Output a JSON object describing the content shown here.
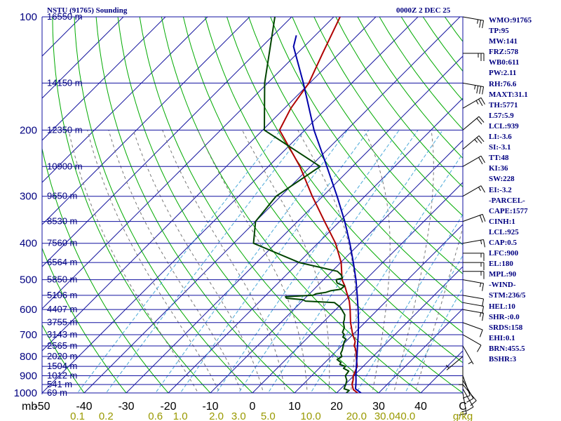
{
  "title_left": "NSTU (91765) Sounding",
  "title_right": "0000Z  2 DEC 25",
  "colors": {
    "isobar": "#1010a0",
    "isotherm": "#1818a0",
    "dry_adiabat": "#00aa00",
    "moist_adiabat": "#777777",
    "mixing_ratio": "#4aa8d8",
    "temperature": "#b00000",
    "dewpoint": "#004400",
    "parcel": "#0000aa",
    "label_text": "#000080",
    "axis_text": "#000000",
    "mr_text": "#999900"
  },
  "chart_data": {
    "type": "line",
    "title": "NSTU (91765) Sounding",
    "xlabel": "C",
    "temperature_range": [
      -50,
      50
    ],
    "pressure_range": [
      1000,
      100
    ],
    "pressure_labels": [
      "100",
      "200",
      "300",
      "400",
      "500",
      "600",
      "700",
      "800",
      "900",
      "1000"
    ],
    "pressure_values": [
      100,
      200,
      300,
      400,
      500,
      600,
      700,
      800,
      900,
      1000
    ],
    "temperature_axis_label": "mb",
    "temperature_ticks": [
      "-50",
      "-40",
      "-30",
      "-20",
      "-10",
      "0",
      "10",
      "20",
      "30",
      "40"
    ],
    "temperature_values": [
      -50,
      -40,
      -30,
      -20,
      -10,
      0,
      10,
      20,
      30,
      40
    ],
    "height_labels": [
      {
        "p": 100,
        "text": "16550 m"
      },
      {
        "p": 150,
        "text": "14150 m"
      },
      {
        "p": 200,
        "text": "12350 m"
      },
      {
        "p": 250,
        "text": "10900 m"
      },
      {
        "p": 300,
        "text": "9650 m"
      },
      {
        "p": 350,
        "text": "8530 m"
      },
      {
        "p": 400,
        "text": "7560 m"
      },
      {
        "p": 450,
        "text": "6564 m"
      },
      {
        "p": 500,
        "text": "5850 m"
      },
      {
        "p": 550,
        "text": "5106 m"
      },
      {
        "p": 600,
        "text": "4407 m"
      },
      {
        "p": 650,
        "text": "3755 m"
      },
      {
        "p": 700,
        "text": "3143 m"
      },
      {
        "p": 750,
        "text": "2565 m"
      },
      {
        "p": 800,
        "text": "2020 m"
      },
      {
        "p": 850,
        "text": "1504 m"
      },
      {
        "p": 900,
        "text": "1012 m"
      },
      {
        "p": 950,
        "text": "541 m"
      },
      {
        "p": 1000,
        "text": "69 m"
      }
    ],
    "mixing_ratio_labels": [
      "0.1",
      "0.2",
      "0.6",
      "1.0",
      "2.0",
      "3.0",
      "5.0",
      "10.0",
      "20.0",
      "30.0",
      "40.0",
      "g/kg"
    ],
    "mixing_ratio_values": [
      0.1,
      0.2,
      0.6,
      1.0,
      2.0,
      3.0,
      5.0,
      10.0,
      20.0,
      30.0,
      40.0
    ],
    "series": [
      {
        "name": "Temperature",
        "points": [
          [
            1000,
            25.0
          ],
          [
            980,
            23.2
          ],
          [
            950,
            21.7
          ],
          [
            925,
            20.9
          ],
          [
            900,
            19.9
          ],
          [
            850,
            18.6
          ],
          [
            800,
            16.0
          ],
          [
            780,
            15.0
          ],
          [
            760,
            13.8
          ],
          [
            750,
            13.0
          ],
          [
            730,
            12.2
          ],
          [
            700,
            10.0
          ],
          [
            650,
            6.6
          ],
          [
            600,
            3.4
          ],
          [
            570,
            1.2
          ],
          [
            550,
            -0.6
          ],
          [
            520,
            -3.4
          ],
          [
            500,
            -5.6
          ],
          [
            450,
            -9.9
          ],
          [
            400,
            -15.8
          ],
          [
            350,
            -23.6
          ],
          [
            300,
            -32.5
          ],
          [
            250,
            -42.5
          ],
          [
            200,
            -56.0
          ],
          [
            175,
            -58.5
          ],
          [
            150,
            -60.2
          ],
          [
            125,
            -64.0
          ],
          [
            100,
            -68.5
          ]
        ]
      },
      {
        "name": "Dewpoint",
        "points": [
          [
            1000,
            22.3
          ],
          [
            985,
            22.4
          ],
          [
            975,
            20.8
          ],
          [
            960,
            20.4
          ],
          [
            950,
            20.2
          ],
          [
            925,
            19.4
          ],
          [
            900,
            18.0
          ],
          [
            875,
            17.7
          ],
          [
            860,
            15.8
          ],
          [
            850,
            15.8
          ],
          [
            840,
            14.0
          ],
          [
            830,
            13.8
          ],
          [
            815,
            12.2
          ],
          [
            800,
            12.6
          ],
          [
            785,
            11.6
          ],
          [
            770,
            11.2
          ],
          [
            750,
            10.4
          ],
          [
            730,
            9.6
          ],
          [
            720,
            9.5
          ],
          [
            710,
            8.2
          ],
          [
            700,
            8.0
          ],
          [
            690,
            7.0
          ],
          [
            670,
            6.3
          ],
          [
            650,
            4.9
          ],
          [
            640,
            4.5
          ],
          [
            620,
            3.4
          ],
          [
            600,
            1.4
          ],
          [
            590,
            0.3
          ],
          [
            575,
            -2.0
          ],
          [
            570,
            -9.2
          ],
          [
            565,
            -10.2
          ],
          [
            560,
            -14.4
          ],
          [
            555,
            -15.0
          ],
          [
            550,
            -8.8
          ],
          [
            545,
            -8.4
          ],
          [
            540,
            -6.4
          ],
          [
            535,
            -5.7
          ],
          [
            530,
            -3.7
          ],
          [
            520,
            -3.5
          ],
          [
            510,
            -6.0
          ],
          [
            500,
            -7.0
          ],
          [
            495,
            -5.9
          ],
          [
            485,
            -7.0
          ],
          [
            475,
            -8.7
          ],
          [
            450,
            -19.9
          ],
          [
            400,
            -35.3
          ],
          [
            350,
            -40.0
          ],
          [
            300,
            -41.1
          ],
          [
            250,
            -37.7
          ],
          [
            200,
            -59.6
          ],
          [
            150,
            -70.7
          ],
          [
            100,
            -84.0
          ]
        ]
      },
      {
        "name": "Parcel",
        "points": [
          [
            1000,
            25.8
          ],
          [
            975,
            23.5
          ],
          [
            950,
            22.6
          ],
          [
            925,
            21.6
          ],
          [
            900,
            20.5
          ],
          [
            850,
            18.4
          ],
          [
            800,
            16.2
          ],
          [
            750,
            13.8
          ],
          [
            700,
            11.3
          ],
          [
            650,
            8.5
          ],
          [
            600,
            5.3
          ],
          [
            550,
            1.7
          ],
          [
            500,
            -2.3
          ],
          [
            450,
            -7.0
          ],
          [
            400,
            -12.4
          ],
          [
            350,
            -18.8
          ],
          [
            300,
            -26.6
          ],
          [
            250,
            -36.1
          ],
          [
            200,
            -47.8
          ],
          [
            150,
            -61.5
          ],
          [
            120,
            -72.5
          ],
          [
            112,
            -74.5
          ]
        ]
      }
    ]
  },
  "stats": [
    "WMO:91765",
    "TP:95",
    "MW:141",
    "FRZ:578",
    "WB0:611",
    "PW:2.11",
    "RH:76.6",
    "MAXT:31.1",
    "TH:5771",
    "L57:5.9",
    "LCL:939",
    "LI:-3.6",
    "SI:-3.1",
    "TT:48",
    "KI:36",
    "SW:228",
    "EI:-3.2",
    "-PARCEL-",
    "CAPE:1577",
    "CINH:1",
    "LCL:925",
    "CAP:0.5",
    "LFC:900",
    "EL:180",
    "MPL:90",
    "-WIND-",
    "STM:236/5",
    "HEL:10",
    "SHR-:0.0",
    "SRDS:158",
    "EHI:0.1",
    "BRN:455.5",
    "BSHR:3"
  ],
  "winds": [
    {
      "p": 1000,
      "dir": 170,
      "spd": 15
    },
    {
      "p": 975,
      "dir": 150,
      "spd": 10
    },
    {
      "p": 950,
      "dir": 140,
      "spd": 10
    },
    {
      "p": 925,
      "dir": 150,
      "spd": 10
    },
    {
      "p": 900,
      "dir": 160,
      "spd": 10
    },
    {
      "p": 850,
      "dir": 180,
      "spd": 5
    },
    {
      "p": 800,
      "dir": 230,
      "spd": 5
    },
    {
      "p": 750,
      "dir": 150,
      "spd": 5
    },
    {
      "p": 700,
      "dir": 120,
      "spd": 10
    },
    {
      "p": 650,
      "dir": 110,
      "spd": 10
    },
    {
      "p": 600,
      "dir": 100,
      "spd": 15
    },
    {
      "p": 575,
      "dir": 100,
      "spd": 10
    },
    {
      "p": 550,
      "dir": 100,
      "spd": 10
    },
    {
      "p": 500,
      "dir": 100,
      "spd": 15
    },
    {
      "p": 475,
      "dir": 90,
      "spd": 15
    },
    {
      "p": 450,
      "dir": 90,
      "spd": 15
    },
    {
      "p": 425,
      "dir": 90,
      "spd": 15
    },
    {
      "p": 400,
      "dir": 80,
      "spd": 15
    },
    {
      "p": 350,
      "dir": 70,
      "spd": 20
    },
    {
      "p": 300,
      "dir": 60,
      "spd": 15
    },
    {
      "p": 250,
      "dir": 60,
      "spd": 20
    },
    {
      "p": 225,
      "dir": 50,
      "spd": 25
    },
    {
      "p": 200,
      "dir": 50,
      "spd": 20
    },
    {
      "p": 175,
      "dir": 60,
      "spd": 25
    },
    {
      "p": 150,
      "dir": 100,
      "spd": 35
    },
    {
      "p": 125,
      "dir": 90,
      "spd": 25
    },
    {
      "p": 100,
      "dir": 100,
      "spd": 25
    }
  ]
}
